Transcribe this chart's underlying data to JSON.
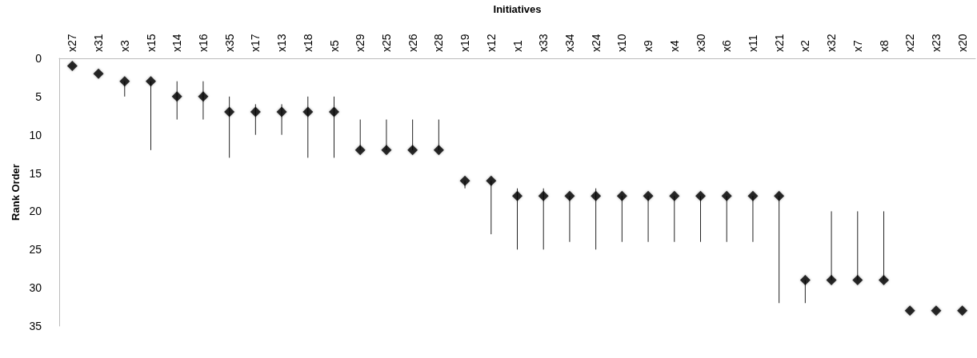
{
  "chart_data": {
    "type": "scatter",
    "xlabel": "Initiatives",
    "ylabel": "Rank Order",
    "categories": [
      "x27",
      "x31",
      "x3",
      "x15",
      "x14",
      "x16",
      "x35",
      "x17",
      "x13",
      "x18",
      "x5",
      "x29",
      "x25",
      "x26",
      "x28",
      "x19",
      "x12",
      "x1",
      "x33",
      "x34",
      "x24",
      "x10",
      "x9",
      "x4",
      "x30",
      "x6",
      "x11",
      "x21",
      "x2",
      "x32",
      "x7",
      "x8",
      "x22",
      "x23",
      "x20"
    ],
    "values": [
      1,
      2,
      3,
      3,
      5,
      5,
      7,
      7,
      7,
      7,
      7,
      12,
      12,
      12,
      12,
      16,
      16,
      18,
      18,
      18,
      18,
      18,
      18,
      18,
      18,
      18,
      18,
      18,
      29,
      29,
      29,
      29,
      33,
      33,
      33
    ],
    "errors": [
      null,
      null,
      [
        3,
        5
      ],
      [
        3,
        12
      ],
      [
        3,
        8
      ],
      [
        3,
        8
      ],
      [
        5,
        13
      ],
      [
        6,
        10
      ],
      [
        6,
        10
      ],
      [
        5,
        13
      ],
      [
        5,
        13
      ],
      [
        8,
        12
      ],
      [
        8,
        12
      ],
      [
        8,
        12
      ],
      [
        8,
        12
      ],
      [
        16,
        17
      ],
      [
        16,
        23
      ],
      [
        17,
        25
      ],
      [
        17,
        25
      ],
      [
        18,
        24
      ],
      [
        17,
        25
      ],
      [
        18,
        24
      ],
      [
        18,
        24
      ],
      [
        18,
        24
      ],
      [
        18,
        24
      ],
      [
        18,
        24
      ],
      [
        18,
        24
      ],
      [
        18,
        32
      ],
      [
        29,
        32
      ],
      [
        20,
        29
      ],
      [
        20,
        29
      ],
      [
        20,
        29
      ],
      null,
      null,
      null
    ],
    "color": "#000000",
    "marker": "diamond",
    "ylim": [
      35,
      0
    ],
    "yticks": [
      0,
      5,
      10,
      15,
      20,
      25,
      30,
      35
    ],
    "grid": false
  }
}
